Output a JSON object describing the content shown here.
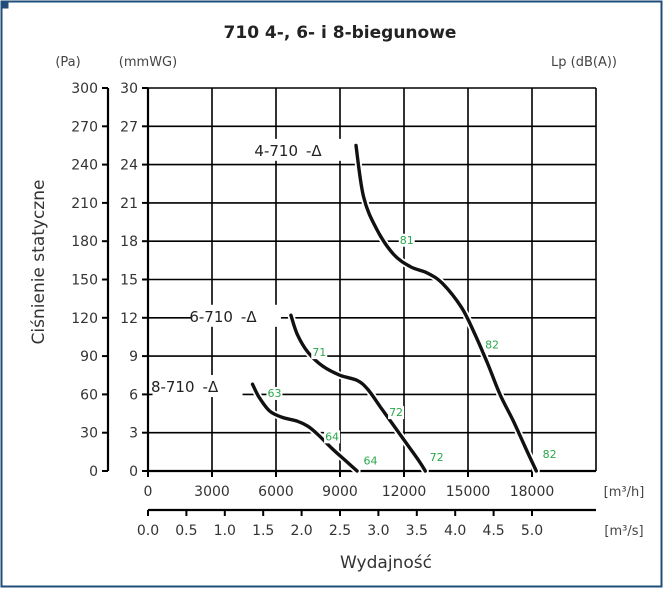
{
  "colors": {
    "border": "#1f4e79",
    "grid": "#000000",
    "curve": "#111111",
    "accent_green": "#2aa84a",
    "text": "#333333"
  },
  "chart_data": {
    "type": "line",
    "title": "710 4-, 6- i 8-biegunowe",
    "ylabel": "Ciśnienie statyczne",
    "xlabel": "Wydajność",
    "pa_unit": "(Pa)",
    "mmwg_unit": "(mmWG)",
    "lp_unit": "Lp (dB(A))",
    "x_unit_m3h": "[m³/h]",
    "x_unit_m3s": "[m³/s]",
    "delta_symbol": "-Δ",
    "xlim": [
      0,
      21000
    ],
    "ylim_mmwg": [
      0,
      30
    ],
    "x_ticks_m3h": [
      "0",
      "3000",
      "6000",
      "9000",
      "12000",
      "15000",
      "18000"
    ],
    "x_ticks_m3h_values": [
      0,
      3000,
      6000,
      9000,
      12000,
      15000,
      18000
    ],
    "y_ticks_pa": [
      "0",
      "30",
      "60",
      "90",
      "120",
      "150",
      "180",
      "210",
      "240",
      "270",
      "300"
    ],
    "y_ticks_mmwg": [
      "0",
      "3",
      "6",
      "9",
      "12",
      "15",
      "18",
      "21",
      "24",
      "27",
      "30"
    ],
    "y_ticks_mmwg_values": [
      0,
      3,
      6,
      9,
      12,
      15,
      18,
      21,
      24,
      27,
      30
    ],
    "x_ticks_m3s": [
      "0.0",
      "0.5",
      "1.0",
      "1.5",
      "2.0",
      "2.5",
      "3.0",
      "3.5",
      "4.0",
      "4.5",
      "5.0"
    ],
    "x_ticks_m3s_values": [
      0.0,
      0.5,
      1.0,
      1.5,
      2.0,
      2.5,
      3.0,
      3.5,
      4.0,
      4.5,
      5.0
    ],
    "grid": true,
    "series": [
      {
        "name": "4-710",
        "points": [
          [
            9750,
            25.5
          ],
          [
            10100,
            21.5
          ],
          [
            10700,
            19.0
          ],
          [
            11500,
            17.0
          ],
          [
            12300,
            16.0
          ],
          [
            13100,
            15.5
          ],
          [
            13800,
            14.7
          ],
          [
            14700,
            12.8
          ],
          [
            15300,
            10.8
          ],
          [
            15900,
            8.5
          ],
          [
            16500,
            6.0
          ],
          [
            17100,
            4.0
          ],
          [
            17700,
            1.8
          ],
          [
            18200,
            0.0
          ]
        ],
        "label_at": [
          9750,
          25.0
        ],
        "lp_labels": [
          {
            "text": "81",
            "x": 11800,
            "y": 17.8
          },
          {
            "text": "82",
            "x": 15800,
            "y": 9.6
          },
          {
            "text": "82",
            "x": 18500,
            "y": 1.0
          }
        ]
      },
      {
        "name": "6-710",
        "points": [
          [
            6700,
            12.2
          ],
          [
            7000,
            10.7
          ],
          [
            7500,
            9.3
          ],
          [
            8200,
            8.2
          ],
          [
            9000,
            7.5
          ],
          [
            9800,
            7.1
          ],
          [
            10300,
            6.4
          ],
          [
            10900,
            5.0
          ],
          [
            11500,
            3.6
          ],
          [
            12100,
            2.2
          ],
          [
            12700,
            0.8
          ],
          [
            13000,
            0.0
          ]
        ],
        "label_at": [
          6700,
          12.0
        ],
        "lp_labels": [
          {
            "text": "71",
            "x": 7700,
            "y": 9.0
          },
          {
            "text": "72",
            "x": 11300,
            "y": 4.3
          },
          {
            "text": "72",
            "x": 13200,
            "y": 0.8
          }
        ]
      },
      {
        "name": "8-710",
        "points": [
          [
            4900,
            6.8
          ],
          [
            5200,
            5.8
          ],
          [
            5700,
            4.7
          ],
          [
            6300,
            4.2
          ],
          [
            7000,
            3.9
          ],
          [
            7500,
            3.5
          ],
          [
            8000,
            2.8
          ],
          [
            8600,
            1.8
          ],
          [
            9200,
            0.9
          ],
          [
            9800,
            0.0
          ]
        ],
        "label_at": [
          4900,
          6.5
        ],
        "lp_labels": [
          {
            "text": "63",
            "x": 5600,
            "y": 5.8
          },
          {
            "text": "64",
            "x": 8300,
            "y": 2.4
          },
          {
            "text": "64",
            "x": 10100,
            "y": 0.5
          }
        ]
      }
    ]
  }
}
